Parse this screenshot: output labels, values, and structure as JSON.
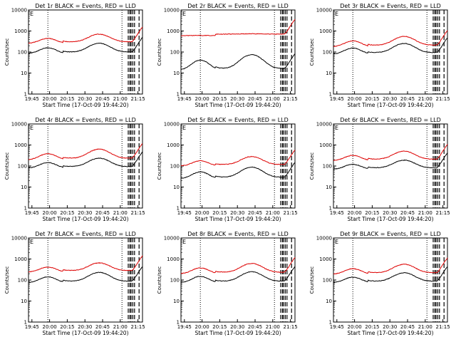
{
  "chart_data": [
    {
      "type": "line",
      "title": "Det 1r BLACK = Events, RED = LLD",
      "ylabel": "Counts/sec",
      "xlabel": "Start Time (17-Oct-09 19:44:20)",
      "xticks": [
        "19:45",
        "20:00",
        "20:15",
        "20:30",
        "20:45",
        "21:00",
        "21:15"
      ],
      "yticks": [
        "1",
        "10",
        "100",
        "1000",
        "10000"
      ],
      "ylim": [
        1,
        10000
      ],
      "flag_label": "E",
      "series": [
        {
          "name": "Events",
          "color": "#000000",
          "baseline": 85,
          "amp": 2.6
        },
        {
          "name": "LLD",
          "color": "#dd0000",
          "baseline": 260,
          "amp": 2.3
        }
      ]
    },
    {
      "type": "line",
      "title": "Det 2r BLACK = Events, RED = LLD",
      "ylabel": "Counts/sec",
      "xlabel": "Start Time (17-Oct-09 19:44:20)",
      "xticks": [
        "19:45",
        "20:00",
        "20:15",
        "20:30",
        "20:45",
        "21:00",
        "21:15"
      ],
      "yticks": [
        "1",
        "10",
        "100",
        "1000",
        "10000"
      ],
      "ylim": [
        1,
        10000
      ],
      "flag_label": "E",
      "series": [
        {
          "name": "Events",
          "color": "#000000",
          "baseline": 14,
          "amp": 4.5
        },
        {
          "name": "LLD",
          "color": "#dd0000",
          "baseline": 600,
          "amp": 1.05
        }
      ]
    },
    {
      "type": "line",
      "title": "Det 3r BLACK = Events, RED = LLD",
      "ylabel": "Counts/sec",
      "xlabel": "Start Time (17-Oct-09 19:44:20)",
      "xticks": [
        "19:45",
        "20:00",
        "20:15",
        "20:30",
        "20:45",
        "21:00",
        "21:15"
      ],
      "yticks": [
        "1",
        "10",
        "100",
        "1000",
        "10000"
      ],
      "ylim": [
        1,
        10000
      ],
      "flag_label": "E",
      "series": [
        {
          "name": "Events",
          "color": "#000000",
          "baseline": 80,
          "amp": 2.7
        },
        {
          "name": "LLD",
          "color": "#dd0000",
          "baseline": 180,
          "amp": 2.6
        }
      ]
    },
    {
      "type": "line",
      "title": "Det 4r BLACK = Events, RED = LLD",
      "ylabel": "Counts/sec",
      "xlabel": "Start Time (17-Oct-09 19:44:20)",
      "xticks": [
        "19:45",
        "20:00",
        "20:15",
        "20:30",
        "20:45",
        "21:00",
        "21:15"
      ],
      "yticks": [
        "1",
        "10",
        "100",
        "1000",
        "10000"
      ],
      "ylim": [
        1,
        10000
      ],
      "flag_label": "E",
      "series": [
        {
          "name": "Events",
          "color": "#000000",
          "baseline": 80,
          "amp": 2.5
        },
        {
          "name": "LLD",
          "color": "#dd0000",
          "baseline": 200,
          "amp": 2.7
        }
      ]
    },
    {
      "type": "line",
      "title": "Det 5r BLACK = Events, RED = LLD",
      "ylabel": "Counts/sec",
      "xlabel": "Start Time (17-Oct-09 19:44:20)",
      "xticks": [
        "19:45",
        "20:00",
        "20:15",
        "20:30",
        "20:45",
        "21:00",
        "21:15"
      ],
      "yticks": [
        "1",
        "10",
        "100",
        "1000",
        "10000"
      ],
      "ylim": [
        1,
        10000
      ],
      "flag_label": "E",
      "series": [
        {
          "name": "Events",
          "color": "#000000",
          "baseline": 25,
          "amp": 3.0
        },
        {
          "name": "LLD",
          "color": "#dd0000",
          "baseline": 100,
          "amp": 2.4
        }
      ]
    },
    {
      "type": "line",
      "title": "Det 6r BLACK = Events, RED = LLD",
      "ylabel": "Counts/sec",
      "xlabel": "Start Time (17-Oct-09 19:44:20)",
      "xticks": [
        "19:45",
        "20:00",
        "20:15",
        "20:30",
        "20:45",
        "21:00",
        "21:15"
      ],
      "yticks": [
        "1",
        "10",
        "100",
        "1000",
        "10000"
      ],
      "ylim": [
        1,
        10000
      ],
      "flag_label": "E",
      "series": [
        {
          "name": "Events",
          "color": "#000000",
          "baseline": 70,
          "amp": 2.3
        },
        {
          "name": "LLD",
          "color": "#dd0000",
          "baseline": 180,
          "amp": 2.4
        }
      ]
    },
    {
      "type": "line",
      "title": "Det 7r BLACK = Events, RED = LLD",
      "ylabel": "Counts/sec",
      "xlabel": "Start Time (17-Oct-09 19:44:20)",
      "xticks": [
        "19:45",
        "20:00",
        "20:15",
        "20:30",
        "20:45",
        "21:00",
        "21:15"
      ],
      "yticks": [
        "1",
        "10",
        "100",
        "1000",
        "10000"
      ],
      "ylim": [
        1,
        10000
      ],
      "flag_label": "E",
      "series": [
        {
          "name": "Events",
          "color": "#000000",
          "baseline": 75,
          "amp": 2.6
        },
        {
          "name": "LLD",
          "color": "#dd0000",
          "baseline": 240,
          "amp": 2.3
        }
      ]
    },
    {
      "type": "line",
      "title": "Det 8r BLACK = Events, RED = LLD",
      "ylabel": "Counts/sec",
      "xlabel": "Start Time (17-Oct-09 19:44:20)",
      "xticks": [
        "19:45",
        "20:00",
        "20:15",
        "20:30",
        "20:45",
        "21:00",
        "21:15"
      ],
      "yticks": [
        "1",
        "10",
        "100",
        "1000",
        "10000"
      ],
      "ylim": [
        1,
        10000
      ],
      "flag_label": "E",
      "series": [
        {
          "name": "Events",
          "color": "#000000",
          "baseline": 75,
          "amp": 2.8
        },
        {
          "name": "LLD",
          "color": "#dd0000",
          "baseline": 200,
          "amp": 2.6
        }
      ]
    },
    {
      "type": "line",
      "title": "Det 9r BLACK = Events, RED = LLD",
      "ylabel": "Counts/sec",
      "xlabel": "Start Time (17-Oct-09 19:44:20)",
      "xticks": [
        "19:45",
        "20:00",
        "20:15",
        "20:30",
        "20:45",
        "21:00",
        "21:15"
      ],
      "yticks": [
        "1",
        "10",
        "100",
        "1000",
        "10000"
      ],
      "ylim": [
        1,
        10000
      ],
      "flag_label": "E",
      "series": [
        {
          "name": "Events",
          "color": "#000000",
          "baseline": 75,
          "amp": 2.5
        },
        {
          "name": "LLD",
          "color": "#dd0000",
          "baseline": 190,
          "amp": 2.5
        }
      ]
    }
  ],
  "colors": {
    "background": "#ffffff",
    "axes": "#000000",
    "events": "#000000",
    "lld": "#dd0000"
  }
}
